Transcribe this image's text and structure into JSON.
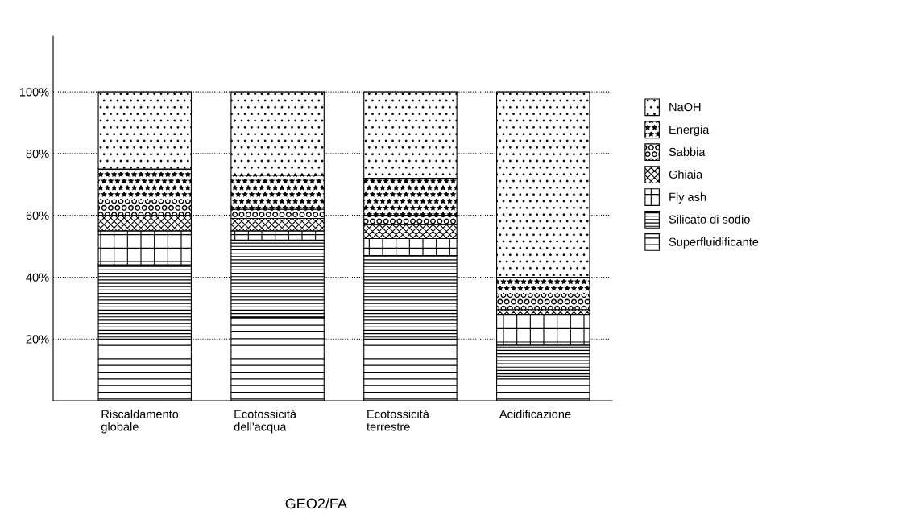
{
  "chart_data": {
    "type": "bar",
    "stacked": true,
    "categories": [
      "Riscaldamento\nglobale",
      "Ecotossicità\ndell'acqua",
      "Ecotossicità\nterrestre",
      "Acidificazione"
    ],
    "series": [
      {
        "name": "Superfluidificante",
        "color": "#000000",
        "values": [
          20,
          27,
          20,
          8
        ]
      },
      {
        "name": "Silicato di sodio",
        "color": "#000000",
        "values": [
          24,
          25,
          27,
          10
        ]
      },
      {
        "name": "Fly ash",
        "color": "#000000",
        "values": [
          11,
          3,
          5.5,
          10
        ]
      },
      {
        "name": "Ghiaia",
        "color": "#000000",
        "values": [
          5,
          4,
          4.5,
          1.5
        ]
      },
      {
        "name": "Sabbia",
        "color": "#000000",
        "values": [
          5,
          3,
          3,
          5
        ]
      },
      {
        "name": "Energia",
        "color": "#000000",
        "values": [
          10,
          11,
          12,
          5.5
        ]
      },
      {
        "name": "NaOH",
        "color": "#000000",
        "values": [
          25,
          27,
          28,
          60
        ]
      }
    ],
    "ylim": [
      0,
      118
    ],
    "yticks": [
      {
        "value": 20,
        "label": "20%"
      },
      {
        "value": 40,
        "label": "40%"
      },
      {
        "value": 60,
        "label": "60%"
      },
      {
        "value": 80,
        "label": "80%"
      },
      {
        "value": 100,
        "label": "100%"
      }
    ],
    "grid": "y",
    "legend": "right",
    "annotations": [
      "GEO2/FA"
    ]
  }
}
